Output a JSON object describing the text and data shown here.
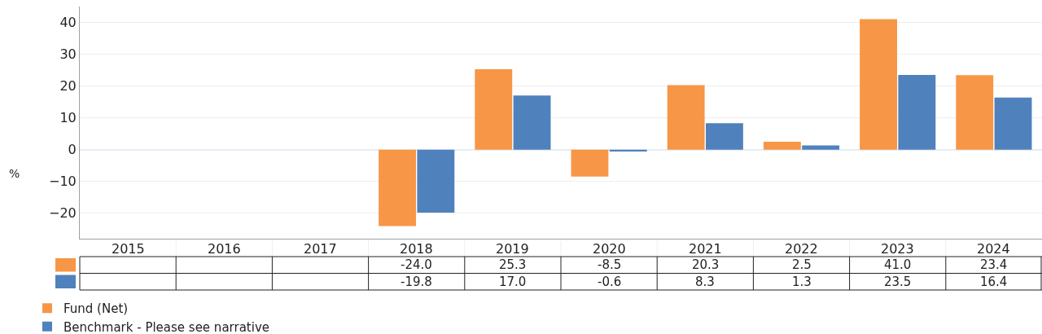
{
  "chart_data": {
    "type": "bar",
    "ylabel": "%",
    "categories": [
      "2015",
      "2016",
      "2017",
      "2018",
      "2019",
      "2020",
      "2021",
      "2022",
      "2023",
      "2024"
    ],
    "series": [
      {
        "name": "Fund (Net)",
        "color": "#f79646",
        "values": [
          null,
          null,
          null,
          -24.0,
          25.3,
          -8.5,
          20.3,
          2.5,
          41.0,
          23.4
        ],
        "value_labels": [
          null,
          null,
          null,
          "-24.0",
          "25.3",
          "-8.5",
          "20.3",
          "2.5",
          "41.0",
          "23.4"
        ]
      },
      {
        "name": "Benchmark - Please see narrative",
        "color": "#4f81bd",
        "values": [
          null,
          null,
          null,
          -19.8,
          17.0,
          -0.6,
          8.3,
          1.3,
          23.5,
          16.4
        ],
        "value_labels": [
          null,
          null,
          null,
          "-19.8",
          "17.0",
          "-0.6",
          "8.3",
          "1.3",
          "23.5",
          "16.4"
        ]
      }
    ],
    "ylim": [
      -28,
      45
    ],
    "yticks": [
      -20,
      -10,
      0,
      10,
      20,
      30,
      40
    ],
    "grid": "y",
    "legend": "bottom left"
  }
}
